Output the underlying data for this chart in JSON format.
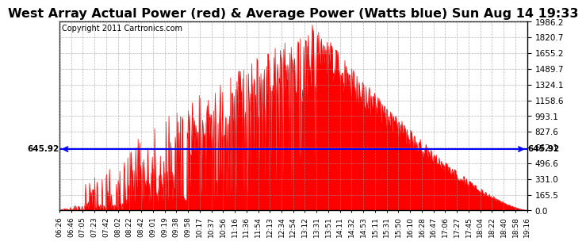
{
  "title": "West Array Actual Power (red) & Average Power (Watts blue) Sun Aug 14 19:33",
  "copyright": "Copyright 2011 Cartronics.com",
  "avg_power": 645.92,
  "y_max": 1986.2,
  "y_min": 0.0,
  "y_ticks": [
    0.0,
    165.5,
    331.0,
    496.6,
    662.1,
    827.6,
    993.1,
    1158.6,
    1324.1,
    1489.7,
    1655.2,
    1820.7,
    1986.2
  ],
  "fill_color": "#ff0000",
  "line_color": "blue",
  "background_color": "white",
  "grid_color": "#999999",
  "title_fontsize": 11.5,
  "copyright_fontsize": 7,
  "x_tick_labels": [
    "06:26",
    "06:46",
    "07:05",
    "07:23",
    "07:42",
    "08:02",
    "08:22",
    "08:42",
    "09:01",
    "09:19",
    "09:38",
    "09:58",
    "10:17",
    "10:37",
    "10:56",
    "11:16",
    "11:36",
    "11:54",
    "12:13",
    "12:34",
    "12:54",
    "13:12",
    "13:31",
    "13:51",
    "14:11",
    "14:32",
    "14:53",
    "15:11",
    "15:31",
    "15:50",
    "16:10",
    "16:28",
    "16:47",
    "17:06",
    "17:27",
    "17:45",
    "18:04",
    "18:22",
    "18:40",
    "18:58",
    "19:16"
  ]
}
